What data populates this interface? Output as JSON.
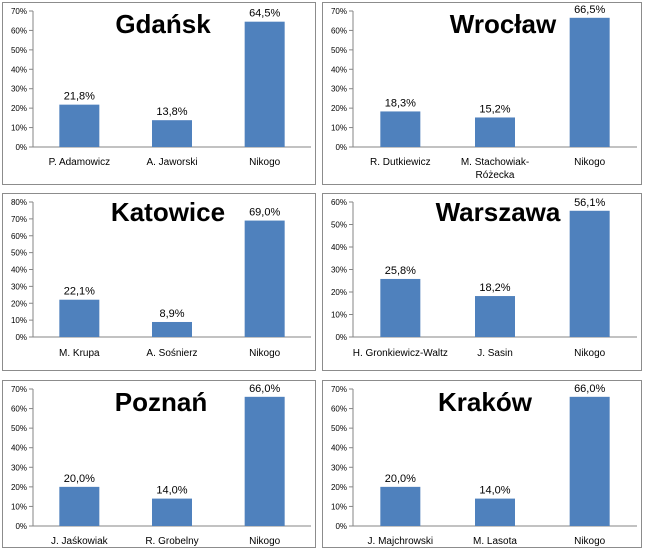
{
  "chart_data": [
    {
      "type": "bar",
      "title": "Gdańsk",
      "categories": [
        "P. Adamowicz",
        "A. Jaworski",
        "Nikogo"
      ],
      "values": [
        21.8,
        13.8,
        64.5
      ],
      "value_labels": [
        "21,8%",
        "13,8%",
        "64,5%"
      ],
      "ylim": [
        0,
        70
      ],
      "yticks": [
        "0%",
        "10%",
        "20%",
        "30%",
        "40%",
        "50%",
        "60%",
        "70%"
      ],
      "bar_color": "#4f81bd",
      "grid": false
    },
    {
      "type": "bar",
      "title": "Wrocław",
      "categories": [
        "R. Dutkiewicz",
        "M. Stachowiak-Różecka",
        "Nikogo"
      ],
      "values": [
        18.3,
        15.2,
        66.5
      ],
      "value_labels": [
        "18,3%",
        "15,2%",
        "66,5%"
      ],
      "ylim": [
        0,
        70
      ],
      "yticks": [
        "0%",
        "10%",
        "20%",
        "30%",
        "40%",
        "50%",
        "60%",
        "70%"
      ],
      "bar_color": "#4f81bd",
      "grid": false
    },
    {
      "type": "bar",
      "title": "Katowice",
      "categories": [
        "M. Krupa",
        "A. Sośnierz",
        "Nikogo"
      ],
      "values": [
        22.1,
        8.9,
        69.0
      ],
      "value_labels": [
        "22,1%",
        "8,9%",
        "69,0%"
      ],
      "ylim": [
        0,
        80
      ],
      "yticks": [
        "0%",
        "10%",
        "20%",
        "30%",
        "40%",
        "50%",
        "60%",
        "70%",
        "80%"
      ],
      "bar_color": "#4f81bd",
      "grid": false
    },
    {
      "type": "bar",
      "title": "Warszawa",
      "categories": [
        "H. Gronkiewicz-Waltz",
        "J. Sasin",
        "Nikogo"
      ],
      "values": [
        25.8,
        18.2,
        56.1
      ],
      "value_labels": [
        "25,8%",
        "18,2%",
        "56,1%"
      ],
      "ylim": [
        0,
        60
      ],
      "yticks": [
        "0%",
        "10%",
        "20%",
        "30%",
        "40%",
        "50%",
        "60%"
      ],
      "bar_color": "#4f81bd",
      "grid": false
    },
    {
      "type": "bar",
      "title": "Poznań",
      "categories": [
        "J. Jaśkowiak",
        "R. Grobelny",
        "Nikogo"
      ],
      "values": [
        20.0,
        14.0,
        66.0
      ],
      "value_labels": [
        "20,0%",
        "14,0%",
        "66,0%"
      ],
      "ylim": [
        0,
        70
      ],
      "yticks": [
        "0%",
        "10%",
        "20%",
        "30%",
        "40%",
        "50%",
        "60%",
        "70%"
      ],
      "bar_color": "#4f81bd",
      "grid": false
    },
    {
      "type": "bar",
      "title": "Kraków",
      "categories": [
        "J. Majchrowski",
        "M. Lasota",
        "Nikogo"
      ],
      "values": [
        20.0,
        14.0,
        66.0
      ],
      "value_labels": [
        "20,0%",
        "14,0%",
        "66,0%"
      ],
      "ylim": [
        0,
        70
      ],
      "yticks": [
        "0%",
        "10%",
        "20%",
        "30%",
        "40%",
        "50%",
        "60%",
        "70%"
      ],
      "bar_color": "#4f81bd",
      "grid": false
    }
  ]
}
